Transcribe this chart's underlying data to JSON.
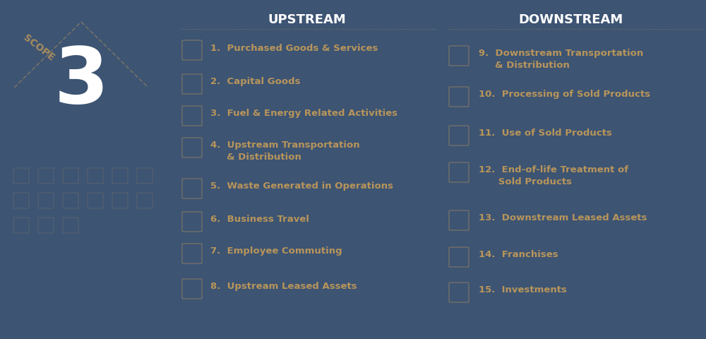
{
  "background_color": "#3d5473",
  "title_upstream": "UPSTREAM",
  "title_downstream": "DOWNSTREAM",
  "title_color": "#ffffff",
  "title_fontsize": 13,
  "title_fontweight": "bold",
  "scope_label": "SCOPE",
  "scope_number": "3",
  "scope_color": "#ffffff",
  "scope_label_color": "#b8955a",
  "item_color": "#b8955a",
  "item_fontsize": 9.5,
  "upstream_items_line1": [
    "1.  Purchased Goods & Services",
    "2.  Capital Goods",
    "3.  Fuel & Energy Related Activities",
    "4.  Upstream Transportation",
    "5.  Waste Generated in Operations",
    "6.  Business Travel",
    "7.  Employee Commuting",
    "8.  Upstream Leased Assets"
  ],
  "upstream_items_line2": [
    "",
    "",
    "",
    "     & Distribution",
    "",
    "",
    "",
    ""
  ],
  "downstream_items_line1": [
    "9.  Downstream Transportation",
    "10.  Processing of Sold Products",
    "11.  Use of Sold Products",
    "12.  End-of-life Treatment of",
    "13.  Downstream Leased Assets",
    "14.  Franchises",
    "15.  Investments"
  ],
  "downstream_items_line2": [
    "     & Distribution",
    "",
    "",
    "      Sold Products",
    "",
    "",
    ""
  ],
  "divider_color": "#b8955a",
  "icon_color": "#b8955a",
  "icon_alpha": 0.55,
  "triangle_color": "#b8955a",
  "triangle_alpha": 0.45
}
